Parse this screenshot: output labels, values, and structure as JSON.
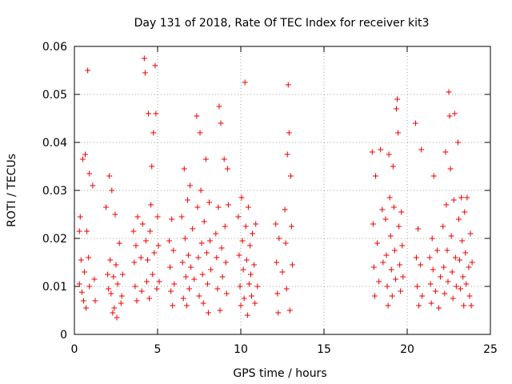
{
  "chart_data": {
    "type": "scatter",
    "title": "Day 131 of 2018, Rate Of TEC Index for receiver kit3",
    "xlabel": "GPS time / hours",
    "ylabel": "ROTI / TECUs",
    "xlim": [
      0,
      25
    ],
    "ylim": [
      0,
      0.06
    ],
    "x_ticks": [
      0,
      5,
      10,
      15,
      20,
      25
    ],
    "x_tick_labels": [
      "0",
      "5",
      "10",
      "15",
      "20",
      "25"
    ],
    "y_ticks": [
      0,
      0.01,
      0.02,
      0.03,
      0.04,
      0.05,
      0.06
    ],
    "y_tick_labels": [
      "0",
      "0.01",
      "0.02",
      "0.03",
      "0.04",
      "0.05",
      "0.06"
    ],
    "grid": true,
    "marker": "plus",
    "color": "#ee0000",
    "series": [
      {
        "name": "ROTI",
        "points": [
          [
            0.3,
            0.0215
          ],
          [
            0.3,
            0.0105
          ],
          [
            0.35,
            0.0245
          ],
          [
            0.4,
            0.0155
          ],
          [
            0.45,
            0.0088
          ],
          [
            0.5,
            0.0365
          ],
          [
            0.55,
            0.007
          ],
          [
            0.6,
            0.013
          ],
          [
            0.65,
            0.0375
          ],
          [
            0.7,
            0.0055
          ],
          [
            0.75,
            0.0215
          ],
          [
            0.8,
            0.055
          ],
          [
            0.85,
            0.016
          ],
          [
            0.9,
            0.0335
          ],
          [
            0.9,
            0.01
          ],
          [
            1.1,
            0.031
          ],
          [
            1.2,
            0.0115
          ],
          [
            1.25,
            0.007
          ],
          [
            1.9,
            0.0265
          ],
          [
            2.0,
            0.0125
          ],
          [
            2.05,
            0.0095
          ],
          [
            2.1,
            0.033
          ],
          [
            2.15,
            0.0155
          ],
          [
            2.2,
            0.0085
          ],
          [
            2.25,
            0.03
          ],
          [
            2.3,
            0.0045
          ],
          [
            2.35,
            0.012
          ],
          [
            2.4,
            0.0055
          ],
          [
            2.45,
            0.025
          ],
          [
            2.5,
            0.0145
          ],
          [
            2.55,
            0.0035
          ],
          [
            2.6,
            0.0105
          ],
          [
            2.7,
            0.019
          ],
          [
            2.8,
            0.0065
          ],
          [
            2.85,
            0.008
          ],
          [
            2.9,
            0.0125
          ],
          [
            3.55,
            0.0215
          ],
          [
            3.6,
            0.015
          ],
          [
            3.65,
            0.01
          ],
          [
            3.7,
            0.0185
          ],
          [
            3.75,
            0.007
          ],
          [
            3.8,
            0.0245
          ],
          [
            4.0,
            0.016
          ],
          [
            4.05,
            0.009
          ],
          [
            4.1,
            0.023
          ],
          [
            4.2,
            0.0575
          ],
          [
            4.25,
            0.0545
          ],
          [
            4.3,
            0.0195
          ],
          [
            4.35,
            0.011
          ],
          [
            4.4,
            0.0155
          ],
          [
            4.45,
            0.046
          ],
          [
            4.5,
            0.0075
          ],
          [
            4.55,
            0.0215
          ],
          [
            4.6,
            0.027
          ],
          [
            4.65,
            0.035
          ],
          [
            4.7,
            0.0125
          ],
          [
            4.75,
            0.042
          ],
          [
            4.8,
            0.017
          ],
          [
            4.85,
            0.056
          ],
          [
            4.9,
            0.046
          ],
          [
            4.95,
            0.0095
          ],
          [
            5.0,
            0.0245
          ],
          [
            5.05,
            0.0185
          ],
          [
            5.1,
            0.011
          ],
          [
            5.7,
            0.0195
          ],
          [
            5.75,
            0.014
          ],
          [
            5.8,
            0.009
          ],
          [
            5.85,
            0.024
          ],
          [
            5.9,
            0.006
          ],
          [
            5.95,
            0.0175
          ],
          [
            6.0,
            0.0105
          ],
          [
            6.45,
            0.0245
          ],
          [
            6.5,
            0.015
          ],
          [
            6.55,
            0.0075
          ],
          [
            6.6,
            0.0345
          ],
          [
            6.65,
            0.02
          ],
          [
            6.7,
            0.012
          ],
          [
            6.75,
            0.006
          ],
          [
            6.8,
            0.028
          ],
          [
            6.85,
            0.0165
          ],
          [
            6.9,
            0.0095
          ],
          [
            6.95,
            0.031
          ],
          [
            7.0,
            0.014
          ],
          [
            7.1,
            0.022
          ],
          [
            7.2,
            0.0115
          ],
          [
            7.35,
            0.0455
          ],
          [
            7.4,
            0.0265
          ],
          [
            7.45,
            0.016
          ],
          [
            7.5,
            0.008
          ],
          [
            7.55,
            0.042
          ],
          [
            7.6,
            0.03
          ],
          [
            7.65,
            0.019
          ],
          [
            7.7,
            0.0125
          ],
          [
            7.75,
            0.0065
          ],
          [
            7.8,
            0.0235
          ],
          [
            7.9,
            0.0365
          ],
          [
            7.95,
            0.017
          ],
          [
            8.0,
            0.0105
          ],
          [
            8.05,
            0.0045
          ],
          [
            8.1,
            0.0275
          ],
          [
            8.15,
            0.0195
          ],
          [
            8.2,
            0.0135
          ],
          [
            8.5,
            0.021
          ],
          [
            8.55,
            0.016
          ],
          [
            8.6,
            0.0095
          ],
          [
            8.65,
            0.0265
          ],
          [
            8.7,
            0.0475
          ],
          [
            8.75,
            0.005
          ],
          [
            8.8,
            0.044
          ],
          [
            8.85,
            0.018
          ],
          [
            8.9,
            0.012
          ],
          [
            9.0,
            0.0365
          ],
          [
            9.05,
            0.0225
          ],
          [
            9.1,
            0.015
          ],
          [
            9.15,
            0.0085
          ],
          [
            9.2,
            0.0345
          ],
          [
            9.25,
            0.027
          ],
          [
            9.85,
            0.0245
          ],
          [
            9.9,
            0.0165
          ],
          [
            9.95,
            0.01
          ],
          [
            10.0,
            0.006
          ],
          [
            10.05,
            0.0285
          ],
          [
            10.1,
            0.0195
          ],
          [
            10.15,
            0.0135
          ],
          [
            10.2,
            0.0075
          ],
          [
            10.25,
            0.0525
          ],
          [
            10.3,
            0.0225
          ],
          [
            10.35,
            0.0155
          ],
          [
            10.4,
            0.004
          ],
          [
            10.45,
            0.0265
          ],
          [
            10.5,
            0.0105
          ],
          [
            10.55,
            0.0185
          ],
          [
            10.6,
            0.0125
          ],
          [
            10.65,
            0.008
          ],
          [
            10.7,
            0.021
          ],
          [
            10.8,
            0.0145
          ],
          [
            10.85,
            0.0065
          ],
          [
            10.9,
            0.023
          ],
          [
            11.0,
            0.01
          ],
          [
            12.1,
            0.023
          ],
          [
            12.15,
            0.015
          ],
          [
            12.2,
            0.0085
          ],
          [
            12.25,
            0.0045
          ],
          [
            12.3,
            0.02
          ],
          [
            12.5,
            0.013
          ],
          [
            12.65,
            0.026
          ],
          [
            12.7,
            0.019
          ],
          [
            12.75,
            0.0095
          ],
          [
            12.8,
            0.0375
          ],
          [
            12.85,
            0.052
          ],
          [
            12.9,
            0.042
          ],
          [
            12.95,
            0.005
          ],
          [
            13.0,
            0.033
          ],
          [
            13.05,
            0.0225
          ],
          [
            13.1,
            0.0145
          ],
          [
            17.9,
            0.038
          ],
          [
            17.95,
            0.023
          ],
          [
            18.0,
            0.014
          ],
          [
            18.05,
            0.008
          ],
          [
            18.1,
            0.033
          ],
          [
            18.2,
            0.019
          ],
          [
            18.3,
            0.011
          ],
          [
            18.4,
            0.0385
          ],
          [
            18.5,
            0.026
          ],
          [
            18.55,
            0.015
          ],
          [
            18.7,
            0.024
          ],
          [
            18.75,
            0.0165
          ],
          [
            18.8,
            0.01
          ],
          [
            18.85,
            0.006
          ],
          [
            18.9,
            0.0375
          ],
          [
            18.95,
            0.0285
          ],
          [
            19.0,
            0.0205
          ],
          [
            19.05,
            0.0135
          ],
          [
            19.1,
            0.008
          ],
          [
            19.15,
            0.035
          ],
          [
            19.2,
            0.0265
          ],
          [
            19.25,
            0.0175
          ],
          [
            19.3,
            0.0115
          ],
          [
            19.35,
            0.047
          ],
          [
            19.4,
            0.049
          ],
          [
            19.45,
            0.042
          ],
          [
            19.5,
            0.0225
          ],
          [
            19.55,
            0.0145
          ],
          [
            19.6,
            0.009
          ],
          [
            19.65,
            0.0255
          ],
          [
            19.7,
            0.0185
          ],
          [
            19.75,
            0.012
          ],
          [
            20.5,
            0.044
          ],
          [
            20.55,
            0.016
          ],
          [
            20.6,
            0.01
          ],
          [
            20.65,
            0.022
          ],
          [
            20.7,
            0.006
          ],
          [
            20.8,
            0.0145
          ],
          [
            20.85,
            0.0385
          ],
          [
            20.9,
            0.008
          ],
          [
            21.35,
            0.016
          ],
          [
            21.4,
            0.0105
          ],
          [
            21.45,
            0.0065
          ],
          [
            21.5,
            0.02
          ],
          [
            21.55,
            0.0135
          ],
          [
            21.6,
            0.033
          ],
          [
            21.7,
            0.009
          ],
          [
            21.8,
            0.0175
          ],
          [
            21.9,
            0.0055
          ],
          [
            22.0,
            0.012
          ],
          [
            22.15,
            0.0225
          ],
          [
            22.2,
            0.014
          ],
          [
            22.25,
            0.0085
          ],
          [
            22.3,
            0.038
          ],
          [
            22.35,
            0.027
          ],
          [
            22.4,
            0.0175
          ],
          [
            22.45,
            0.011
          ],
          [
            22.5,
            0.0505
          ],
          [
            22.55,
            0.0455
          ],
          [
            22.6,
            0.0345
          ],
          [
            22.65,
            0.0205
          ],
          [
            22.7,
            0.013
          ],
          [
            22.75,
            0.0075
          ],
          [
            22.8,
            0.028
          ],
          [
            22.85,
            0.046
          ],
          [
            22.9,
            0.016
          ],
          [
            22.95,
            0.01
          ],
          [
            23.05,
            0.04
          ],
          [
            23.1,
            0.024
          ],
          [
            23.15,
            0.0155
          ],
          [
            23.2,
            0.0095
          ],
          [
            23.25,
            0.0285
          ],
          [
            23.3,
            0.0195
          ],
          [
            23.35,
            0.012
          ],
          [
            23.4,
            0.006
          ],
          [
            23.45,
            0.0255
          ],
          [
            23.5,
            0.017
          ],
          [
            23.55,
            0.0105
          ],
          [
            23.6,
            0.0285
          ],
          [
            23.7,
            0.014
          ],
          [
            23.75,
            0.008
          ],
          [
            23.8,
            0.021
          ],
          [
            23.85,
            0.006
          ],
          [
            23.9,
            0.015
          ]
        ]
      }
    ]
  }
}
